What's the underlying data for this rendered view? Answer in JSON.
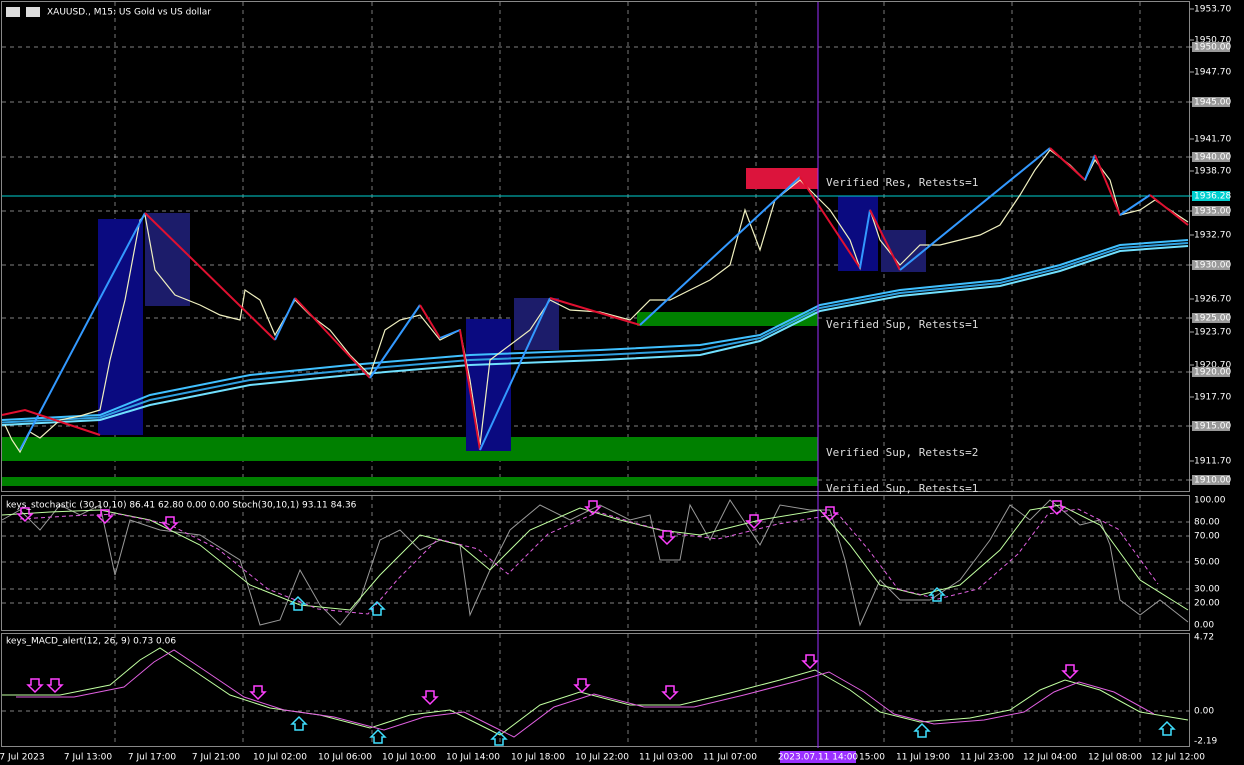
{
  "header": {
    "title": "XAUUSD., M15: US Gold vs US dollar"
  },
  "price_axis": {
    "labels": [
      "1953.70",
      "1950.70",
      "1950.00",
      "1947.70",
      "1945.00",
      "1941.70",
      "1940.00",
      "1938.70",
      "1936.28",
      "1935.00",
      "1932.70",
      "1930.00",
      "1926.70",
      "1925.00",
      "1923.70",
      "1920.70",
      "1920.00",
      "1917.70",
      "1915.00",
      "1911.70",
      "1910.00"
    ]
  },
  "zones": [
    "Verified Res, Retests=1",
    "Verified Sup, Retests=1",
    "Verified Sup, Retests=2",
    "Verified Sup, Retests=1"
  ],
  "stochastic": {
    "title": "keys_stochastic (30,10,10) 86.41 62.80 0.00 0.00 Stoch(30,10,1) 93.11 84.36",
    "axis": [
      "100.00",
      "80.00",
      "70.00",
      "50.00",
      "30.00",
      "20.00",
      "0.00"
    ]
  },
  "macd": {
    "title": "keys_MACD_alert(12, 26, 9) 0.73 0.06",
    "axis": [
      "4.72",
      "0.00",
      "-2.19"
    ]
  },
  "time_axis": {
    "labels": [
      "7 Jul 2023",
      "7 Jul 13:00",
      "7 Jul 17:00",
      "7 Jul 21:00",
      "10 Jul 02:00",
      "10 Jul 06:00",
      "10 Jul 10:00",
      "10 Jul 14:00",
      "10 Jul 18:00",
      "10 Jul 22:00",
      "11 Jul 03:00",
      "11 Jul 07:00",
      "2023.07.11 14:00",
      "15:00",
      "11 Jul 19:00",
      "11 Jul 23:00",
      "12 Jul 04:00",
      "12 Jul 08:00",
      "12 Jul 12:00"
    ]
  }
}
